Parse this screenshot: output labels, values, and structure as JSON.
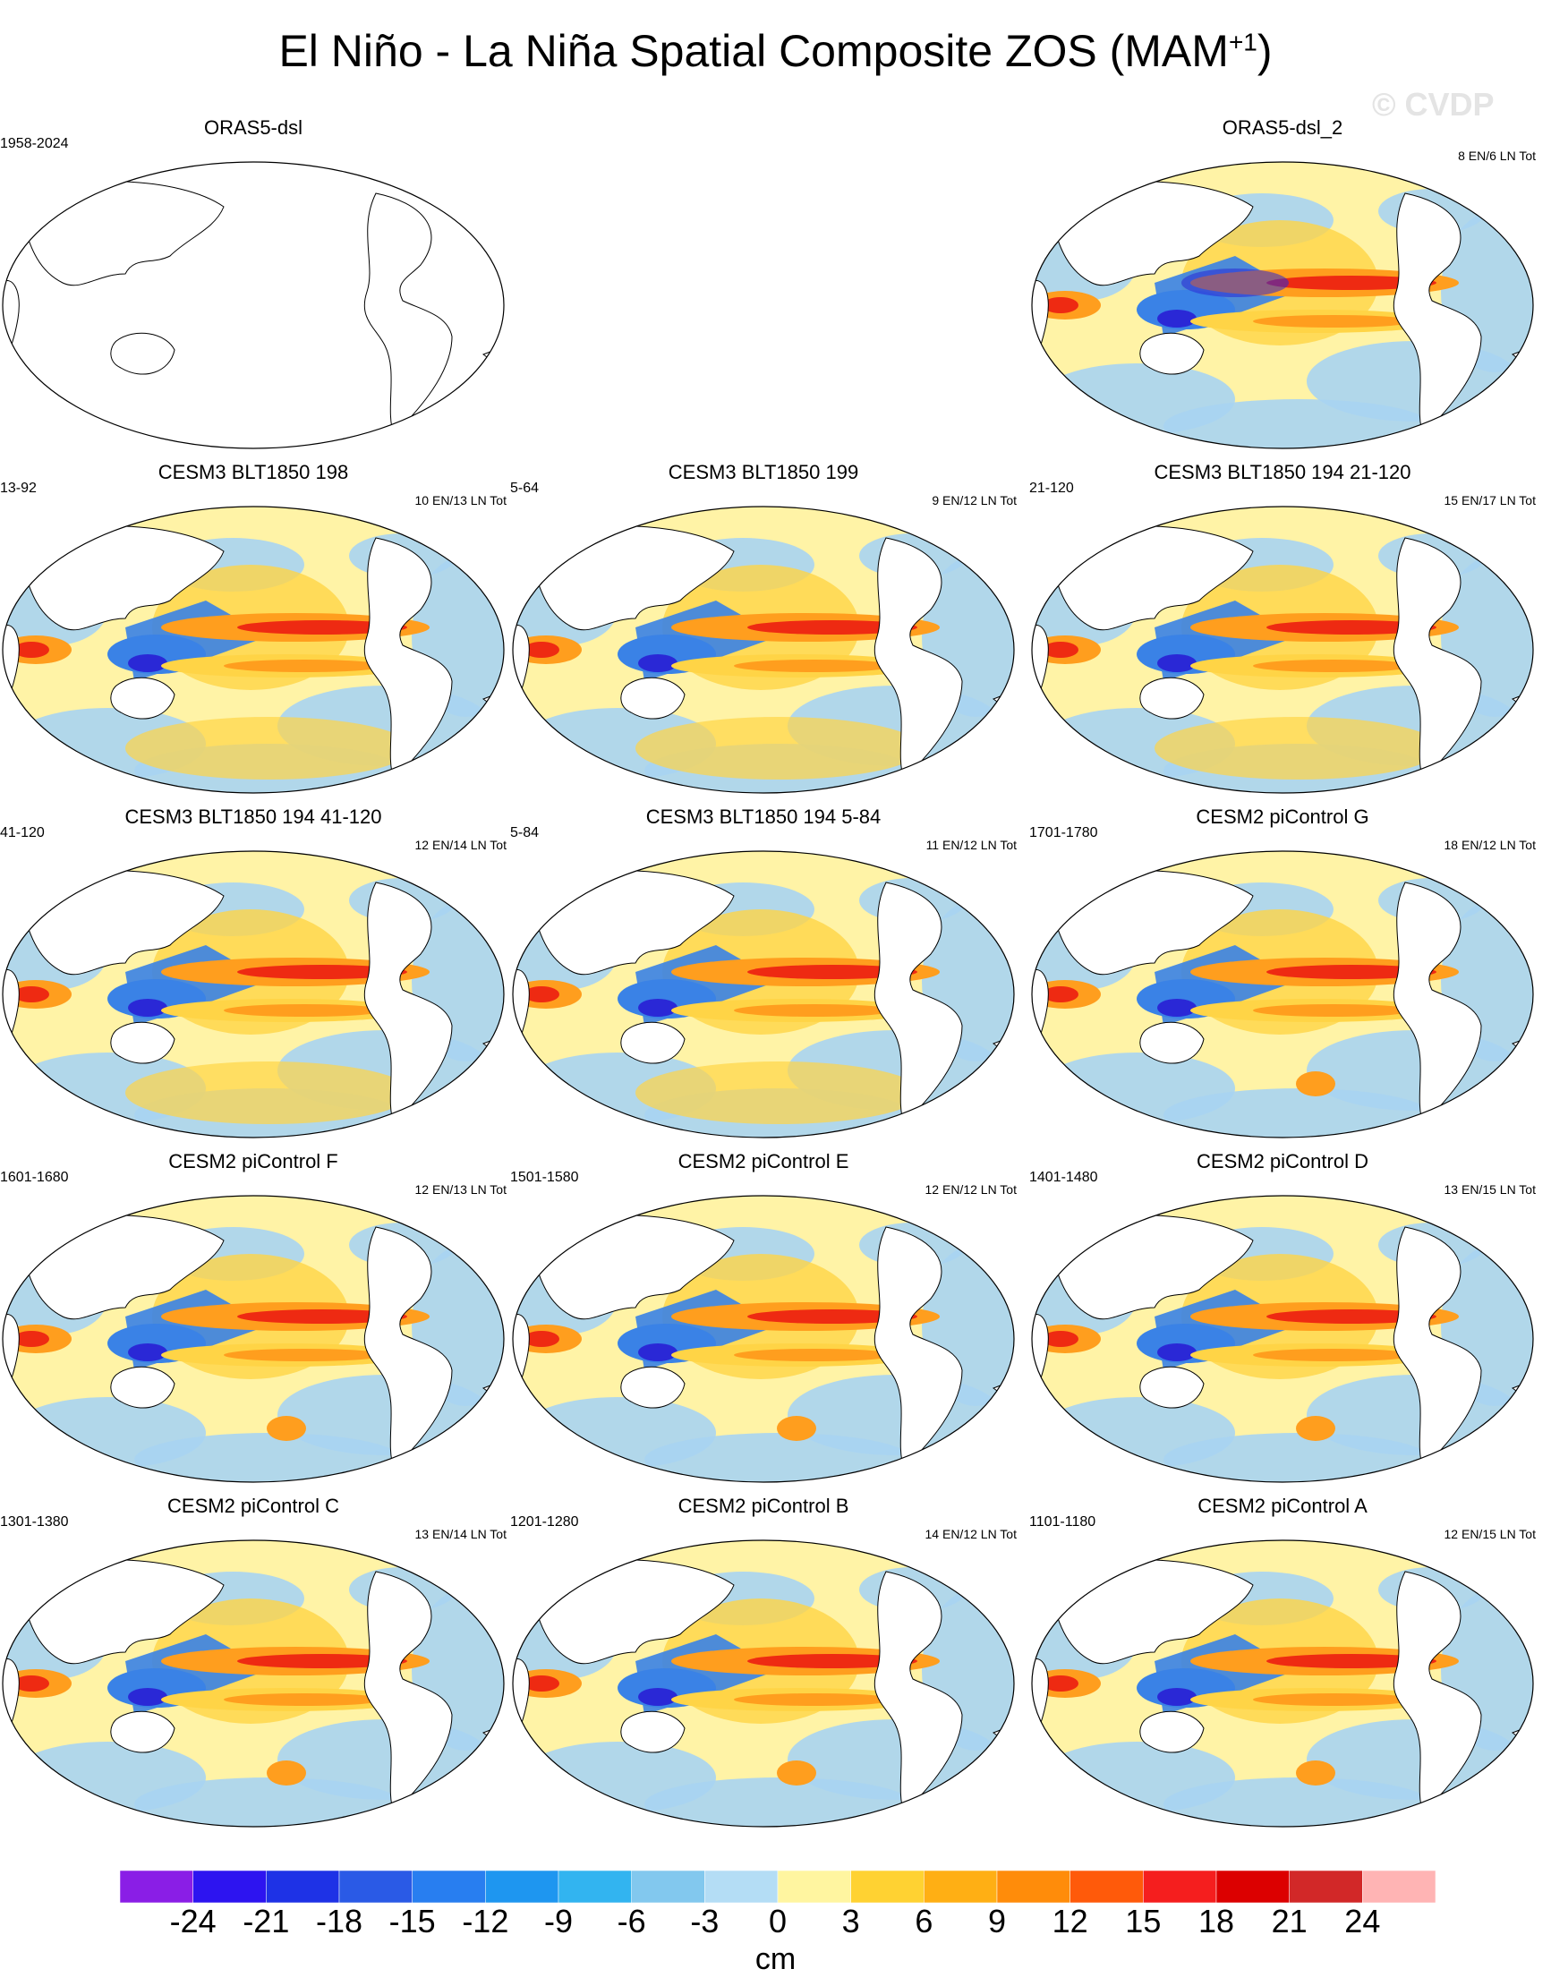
{
  "title": "El Niño - La Niña Spatial Composite ZOS (MAM",
  "title_sup": "+1",
  "title_close": ")",
  "watermark": "© CVDP",
  "panels": [
    {
      "title": "ORAS5-dsl",
      "years": "1958-2024",
      "counts": "",
      "style": "blank"
    },
    {
      "title": "ORAS5-dsl_2",
      "years": "",
      "counts": "8 EN/6 LN Tot",
      "style": "obs"
    },
    {
      "title": "CESM3 BLT1850 198",
      "years": "13-92",
      "counts": "10 EN/13 LN Tot",
      "style": "cesm3"
    },
    {
      "title": "CESM3 BLT1850 199",
      "years": "5-64",
      "counts": "9 EN/12 LN Tot",
      "style": "cesm3"
    },
    {
      "title": "CESM3 BLT1850 194 21-120",
      "years": "21-120",
      "counts": "15 EN/17 LN Tot",
      "style": "cesm3"
    },
    {
      "title": "CESM3 BLT1850 194 41-120",
      "years": "41-120",
      "counts": "12 EN/14 LN Tot",
      "style": "cesm3"
    },
    {
      "title": "CESM3 BLT1850 194 5-84",
      "years": "5-84",
      "counts": "11 EN/12 LN Tot",
      "style": "cesm3"
    },
    {
      "title": "CESM2 piControl G",
      "years": "1701-1780",
      "counts": "18 EN/12 LN Tot",
      "style": "cesm2"
    },
    {
      "title": "CESM2 piControl F",
      "years": "1601-1680",
      "counts": "12 EN/13 LN Tot",
      "style": "cesm2"
    },
    {
      "title": "CESM2 piControl E",
      "years": "1501-1580",
      "counts": "12 EN/12 LN Tot",
      "style": "cesm2"
    },
    {
      "title": "CESM2 piControl D",
      "years": "1401-1480",
      "counts": "13 EN/15 LN Tot",
      "style": "cesm2"
    },
    {
      "title": "CESM2 piControl C",
      "years": "1301-1380",
      "counts": "13 EN/14 LN Tot",
      "style": "cesm2"
    },
    {
      "title": "CESM2 piControl B",
      "years": "1201-1280",
      "counts": "14 EN/12 LN Tot",
      "style": "cesm2"
    },
    {
      "title": "CESM2 piControl A",
      "years": "1101-1180",
      "counts": "12 EN/15 LN Tot",
      "style": "cesm2"
    }
  ],
  "colorbar": {
    "units": "cm",
    "labels": [
      "-24",
      "-21",
      "-18",
      "-15",
      "-12",
      "-9",
      "-6",
      "-3",
      "0",
      "3",
      "6",
      "9",
      "12",
      "15",
      "18",
      "21",
      "24"
    ],
    "colors": [
      "#8a1ee6",
      "#2d14f0",
      "#1e32e6",
      "#2a5ae6",
      "#287ef0",
      "#1e96f0",
      "#32b4f0",
      "#82c8ee",
      "#b4ddf5",
      "#fff5a0",
      "#ffd232",
      "#ffaf14",
      "#ff8c0a",
      "#ff5a0a",
      "#f51e1e",
      "#dc0000",
      "#d22828",
      "#ffb4b4"
    ]
  },
  "palette": {
    "deep_blue": "#2a28d6",
    "blue": "#3a82e6",
    "light_blue": "#a8d4f2",
    "pale_yellow": "#fff3a6",
    "yellow": "#ffd446",
    "orange": "#ff9e1e",
    "red": "#ee2a12",
    "land": "#ffffff",
    "coast": "#000000"
  }
}
